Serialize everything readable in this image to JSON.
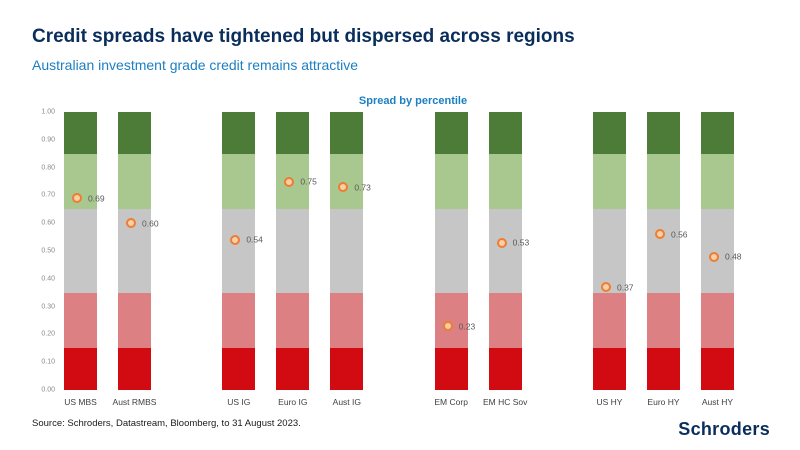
{
  "header": {
    "title": "Credit spreads have tightened but dispersed across regions",
    "subtitle": "Australian investment grade credit remains attractive"
  },
  "chart_data": {
    "type": "bar",
    "title": "Spread by percentile",
    "categories": [
      "US MBS",
      "Aust RMBS",
      "US IG",
      "Euro IG",
      "Aust IG",
      "EM Corp",
      "EM HC Sov",
      "US HY",
      "Euro HY",
      "Aust HY"
    ],
    "group_sizes": [
      2,
      3,
      2,
      3
    ],
    "values": [
      0.69,
      0.6,
      0.54,
      0.75,
      0.73,
      0.23,
      0.53,
      0.37,
      0.56,
      0.48
    ],
    "ylim": [
      0,
      1
    ],
    "yticks": [
      "1.00",
      "0.90",
      "0.80",
      "0.70",
      "0.60",
      "0.50",
      "0.40",
      "0.30",
      "0.20",
      "0.10",
      "0.00"
    ],
    "bands": [
      {
        "label": "bottom-percentile",
        "from": 0.0,
        "to": 0.15,
        "color": "#d20a11"
      },
      {
        "label": "low-percentile",
        "from": 0.15,
        "to": 0.35,
        "color": "#dc8084"
      },
      {
        "label": "mid-percentile",
        "from": 0.35,
        "to": 0.65,
        "color": "#c6c6c6"
      },
      {
        "label": "high-percentile",
        "from": 0.65,
        "to": 0.85,
        "color": "#a9c88f"
      },
      {
        "label": "top-percentile",
        "from": 0.85,
        "to": 1.0,
        "color": "#4d7c38"
      }
    ],
    "marker": {
      "border_color": "#ed7d31",
      "fill_color": "#f9cfa8"
    },
    "legend": "none",
    "grid": "off"
  },
  "footer": {
    "source": "Source: Schroders, Datastream, Bloomberg, to 31 August 2023.",
    "brand": "Schroders"
  },
  "colors": {
    "title_navy": "#0a2e5c",
    "accent_blue": "#1b7fc3"
  }
}
